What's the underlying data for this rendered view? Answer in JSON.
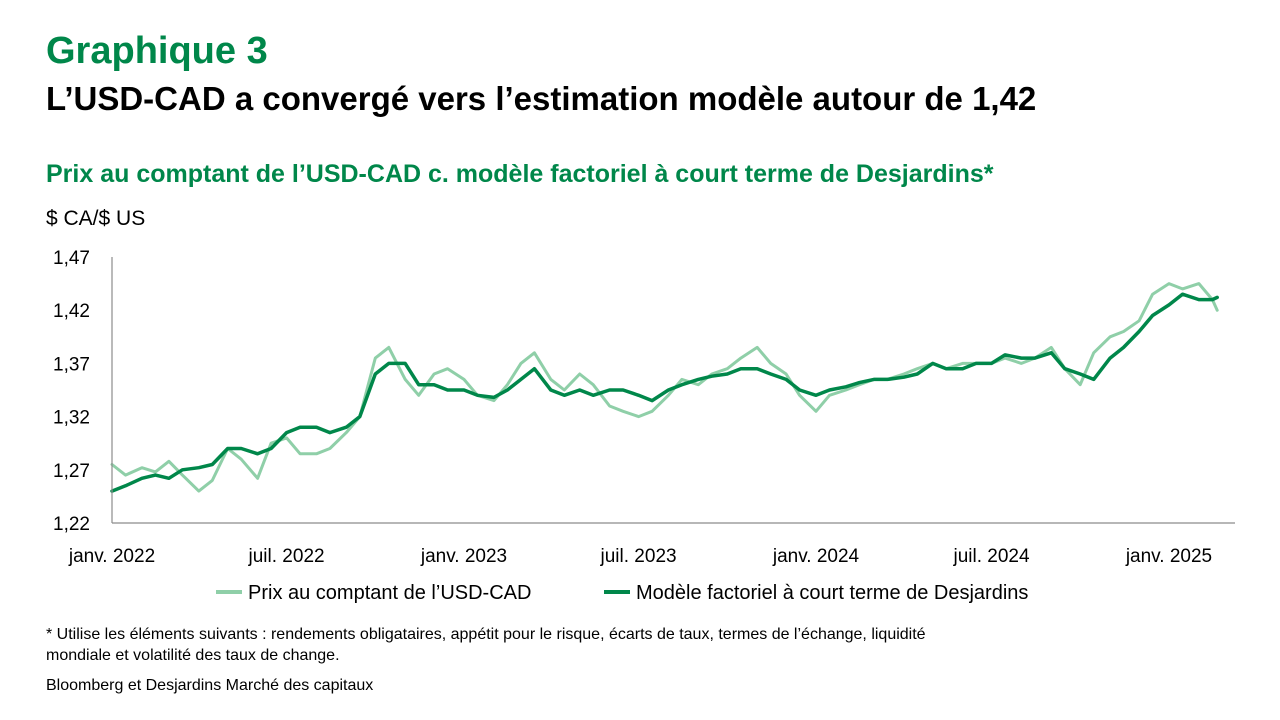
{
  "header": {
    "kicker": "Graphique 3",
    "headline": "L’USD-CAD a convergé vers l’estimation modèle autour de 1,42"
  },
  "footer": {
    "footnote": "* Utilise les éléments suivants : rendements obligataires, appétit pour le risque, écarts de taux, termes de l’échange, liquidité mondiale et volatilité des taux de change.",
    "source": "Bloomberg et Desjardins Marché des capitaux"
  },
  "chart_data": {
    "type": "line",
    "title": "Prix au comptant de l’USD-CAD c. modèle factoriel à court terme de Desjardins*",
    "ylabel": "$ CA/$ US",
    "ylim": [
      1.22,
      1.47
    ],
    "yticks": [
      1.22,
      1.27,
      1.32,
      1.37,
      1.42,
      1.47
    ],
    "ytick_labels": [
      "1,22",
      "1,27",
      "1,32",
      "1,37",
      "1,42",
      "1,47"
    ],
    "xlim": [
      "2022-01-01",
      "2025-02-25"
    ],
    "xticks": [
      "2022-01-01",
      "2022-07-01",
      "2023-01-01",
      "2023-07-01",
      "2024-01-01",
      "2024-07-01",
      "2025-01-01"
    ],
    "xtick_labels": [
      "janv. 2022",
      "juil. 2022",
      "janv. 2023",
      "juil. 2023",
      "janv. 2024",
      "juil. 2024",
      "janv. 2025"
    ],
    "grid": false,
    "legend_position": "bottom",
    "series": [
      {
        "name": "Prix au comptant de l’USD-CAD",
        "color": "#8fcfa8",
        "x": [
          "2022-01-01",
          "2022-01-15",
          "2022-02-01",
          "2022-02-15",
          "2022-03-01",
          "2022-03-15",
          "2022-04-01",
          "2022-04-15",
          "2022-05-01",
          "2022-05-15",
          "2022-06-01",
          "2022-06-15",
          "2022-07-01",
          "2022-07-15",
          "2022-08-01",
          "2022-08-15",
          "2022-09-01",
          "2022-09-15",
          "2022-10-01",
          "2022-10-15",
          "2022-11-01",
          "2022-11-15",
          "2022-12-01",
          "2022-12-15",
          "2023-01-01",
          "2023-01-15",
          "2023-02-01",
          "2023-02-15",
          "2023-03-01",
          "2023-03-15",
          "2023-04-01",
          "2023-04-15",
          "2023-05-01",
          "2023-05-15",
          "2023-06-01",
          "2023-06-15",
          "2023-07-01",
          "2023-07-15",
          "2023-08-01",
          "2023-08-15",
          "2023-09-01",
          "2023-09-15",
          "2023-10-01",
          "2023-10-15",
          "2023-11-01",
          "2023-11-15",
          "2023-12-01",
          "2023-12-15",
          "2024-01-01",
          "2024-01-15",
          "2024-02-01",
          "2024-02-15",
          "2024-03-01",
          "2024-03-15",
          "2024-04-01",
          "2024-04-15",
          "2024-05-01",
          "2024-05-15",
          "2024-06-01",
          "2024-06-15",
          "2024-07-01",
          "2024-07-15",
          "2024-08-01",
          "2024-08-15",
          "2024-09-01",
          "2024-09-15",
          "2024-10-01",
          "2024-10-15",
          "2024-11-01",
          "2024-11-15",
          "2024-12-01",
          "2024-12-15",
          "2025-01-01",
          "2025-01-15",
          "2025-02-01",
          "2025-02-15",
          "2025-02-20"
        ],
        "y": [
          1.275,
          1.265,
          1.272,
          1.268,
          1.278,
          1.265,
          1.25,
          1.26,
          1.29,
          1.28,
          1.262,
          1.295,
          1.3,
          1.285,
          1.285,
          1.29,
          1.305,
          1.32,
          1.375,
          1.385,
          1.355,
          1.34,
          1.36,
          1.365,
          1.355,
          1.34,
          1.335,
          1.35,
          1.37,
          1.38,
          1.355,
          1.345,
          1.36,
          1.35,
          1.33,
          1.325,
          1.32,
          1.325,
          1.34,
          1.355,
          1.35,
          1.36,
          1.365,
          1.375,
          1.385,
          1.37,
          1.36,
          1.34,
          1.325,
          1.34,
          1.345,
          1.35,
          1.355,
          1.355,
          1.36,
          1.365,
          1.37,
          1.365,
          1.37,
          1.37,
          1.37,
          1.375,
          1.37,
          1.375,
          1.385,
          1.365,
          1.35,
          1.38,
          1.395,
          1.4,
          1.41,
          1.435,
          1.445,
          1.44,
          1.445,
          1.43,
          1.42
        ]
      },
      {
        "name": "Modèle factoriel à court terme de Desjardins",
        "color": "#00874a",
        "x": [
          "2022-01-01",
          "2022-01-15",
          "2022-02-01",
          "2022-02-15",
          "2022-03-01",
          "2022-03-15",
          "2022-04-01",
          "2022-04-15",
          "2022-05-01",
          "2022-05-15",
          "2022-06-01",
          "2022-06-15",
          "2022-07-01",
          "2022-07-15",
          "2022-08-01",
          "2022-08-15",
          "2022-09-01",
          "2022-09-15",
          "2022-10-01",
          "2022-10-15",
          "2022-11-01",
          "2022-11-15",
          "2022-12-01",
          "2022-12-15",
          "2023-01-01",
          "2023-01-15",
          "2023-02-01",
          "2023-02-15",
          "2023-03-01",
          "2023-03-15",
          "2023-04-01",
          "2023-04-15",
          "2023-05-01",
          "2023-05-15",
          "2023-06-01",
          "2023-06-15",
          "2023-07-01",
          "2023-07-15",
          "2023-08-01",
          "2023-08-15",
          "2023-09-01",
          "2023-09-15",
          "2023-10-01",
          "2023-10-15",
          "2023-11-01",
          "2023-11-15",
          "2023-12-01",
          "2023-12-15",
          "2024-01-01",
          "2024-01-15",
          "2024-02-01",
          "2024-02-15",
          "2024-03-01",
          "2024-03-15",
          "2024-04-01",
          "2024-04-15",
          "2024-05-01",
          "2024-05-15",
          "2024-06-01",
          "2024-06-15",
          "2024-07-01",
          "2024-07-15",
          "2024-08-01",
          "2024-08-15",
          "2024-09-01",
          "2024-09-15",
          "2024-10-01",
          "2024-10-15",
          "2024-11-01",
          "2024-11-15",
          "2024-12-01",
          "2024-12-15",
          "2025-01-01",
          "2025-01-15",
          "2025-02-01",
          "2025-02-15",
          "2025-02-20"
        ],
        "y": [
          1.25,
          1.255,
          1.262,
          1.265,
          1.262,
          1.27,
          1.272,
          1.275,
          1.29,
          1.29,
          1.285,
          1.29,
          1.305,
          1.31,
          1.31,
          1.305,
          1.31,
          1.32,
          1.36,
          1.37,
          1.37,
          1.35,
          1.35,
          1.345,
          1.345,
          1.34,
          1.338,
          1.345,
          1.355,
          1.365,
          1.345,
          1.34,
          1.345,
          1.34,
          1.345,
          1.345,
          1.34,
          1.335,
          1.345,
          1.35,
          1.355,
          1.358,
          1.36,
          1.365,
          1.365,
          1.36,
          1.355,
          1.345,
          1.34,
          1.345,
          1.348,
          1.352,
          1.355,
          1.355,
          1.357,
          1.36,
          1.37,
          1.365,
          1.365,
          1.37,
          1.37,
          1.378,
          1.375,
          1.375,
          1.38,
          1.365,
          1.36,
          1.355,
          1.375,
          1.385,
          1.4,
          1.415,
          1.425,
          1.435,
          1.43,
          1.43,
          1.432
        ]
      }
    ]
  }
}
